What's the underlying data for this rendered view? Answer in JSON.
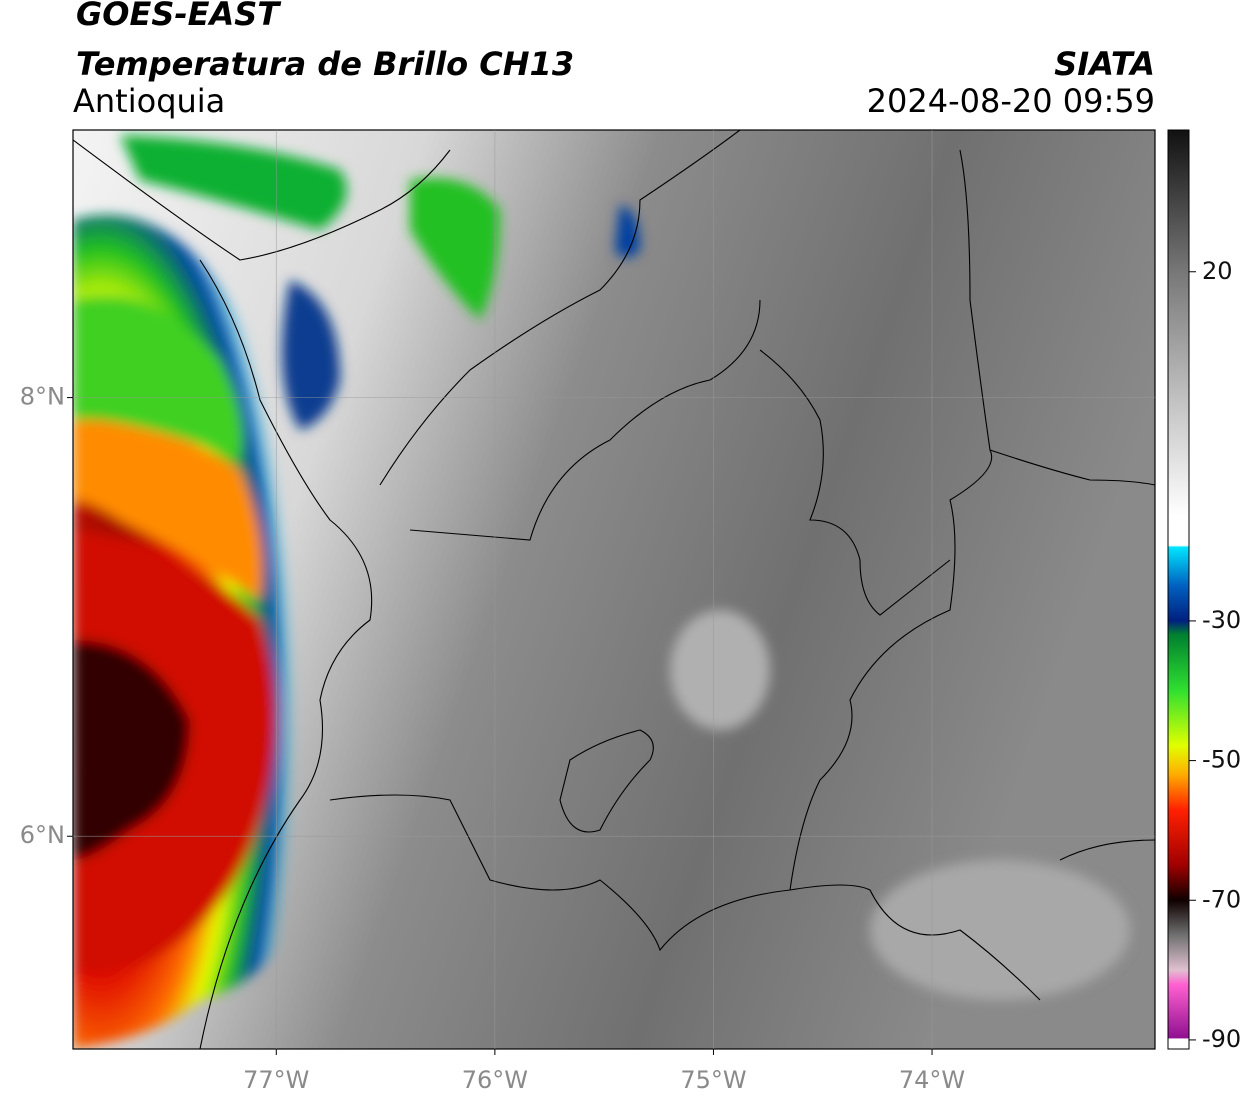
{
  "header": {
    "title": "GOES-EAST",
    "subtitle": "Temperatura de Brillo CH13",
    "region": "Antioquia",
    "source": "SIATA",
    "datetime": "2024-08-20 09:59"
  },
  "map": {
    "xlim": [
      -77.93,
      -72.98
    ],
    "ylim": [
      5.03,
      9.22
    ],
    "xticks": [
      {
        "value": -77,
        "label": "77°W"
      },
      {
        "value": -76,
        "label": "76°W"
      },
      {
        "value": -75,
        "label": "75°W"
      },
      {
        "value": -74,
        "label": "74°W"
      }
    ],
    "yticks": [
      {
        "value": 6,
        "label": "6°N"
      },
      {
        "value": 8,
        "label": "8°N"
      }
    ],
    "grid": true
  },
  "colorbar": {
    "lim": [
      -91.3,
      40.3
    ],
    "ticks": [
      20,
      -30,
      -50,
      -70,
      -90
    ]
  }
}
